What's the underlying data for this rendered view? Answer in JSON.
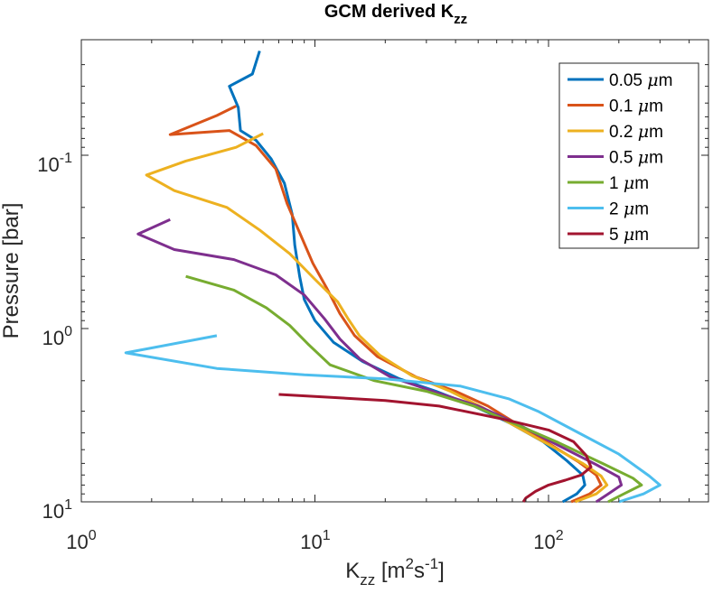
{
  "chart_data": {
    "type": "line",
    "title": "GCM derived K",
    "title_subscript": "zz",
    "xlabel": "K",
    "xlabel_subscript": "zz",
    "xlabel_units_open": " [m",
    "xlabel_units_sup1": "2",
    "xlabel_units_mid": "s",
    "xlabel_units_sup2": "-1",
    "xlabel_units_close": "]",
    "ylabel": "Pressure [bar]",
    "xscale": "log",
    "yscale": "log",
    "y_reversed": true,
    "xlim": [
      1,
      450
    ],
    "ylim": [
      0.0225,
      10
    ],
    "grid": false,
    "legend_location": "top-right",
    "x_ticks": [
      {
        "value": 1,
        "base": "10",
        "exp": "0"
      },
      {
        "value": 10,
        "base": "10",
        "exp": "1"
      },
      {
        "value": 100,
        "base": "10",
        "exp": "2"
      }
    ],
    "y_ticks": [
      {
        "value": 0.1,
        "base": "10",
        "exp": "-1"
      },
      {
        "value": 1,
        "base": "10",
        "exp": "0"
      },
      {
        "value": 10,
        "base": "10",
        "exp": "1"
      }
    ],
    "series": [
      {
        "name": "0.05 μm",
        "legend_value": "0.05",
        "legend_unit": "μm",
        "color": "#0072BD",
        "points": [
          [
            5.8,
            0.025
          ],
          [
            5.4,
            0.034
          ],
          [
            4.3,
            0.04
          ],
          [
            4.7,
            0.053
          ],
          [
            4.8,
            0.072
          ],
          [
            5.6,
            0.082
          ],
          [
            6.5,
            0.105
          ],
          [
            7.4,
            0.145
          ],
          [
            8.0,
            0.22
          ],
          [
            8.2,
            0.33
          ],
          [
            8.6,
            0.5
          ],
          [
            9.0,
            0.68
          ],
          [
            10.0,
            0.9
          ],
          [
            12.0,
            1.2
          ],
          [
            16.0,
            1.55
          ],
          [
            23.0,
            1.95
          ],
          [
            33.0,
            2.3
          ],
          [
            48.0,
            2.8
          ],
          [
            68.0,
            3.5
          ],
          [
            95.0,
            4.5
          ],
          [
            120.0,
            5.8
          ],
          [
            140.0,
            7.0
          ],
          [
            143.0,
            8.0
          ],
          [
            132.0,
            9.0
          ],
          [
            115.0,
            10.0
          ]
        ]
      },
      {
        "name": "0.1 μm",
        "legend_value": "0.1",
        "legend_unit": "μm",
        "color": "#D95319",
        "points": [
          [
            4.6,
            0.052
          ],
          [
            3.8,
            0.059
          ],
          [
            2.4,
            0.076
          ],
          [
            4.3,
            0.072
          ],
          [
            5.6,
            0.088
          ],
          [
            6.8,
            0.12
          ],
          [
            7.6,
            0.19
          ],
          [
            8.6,
            0.28
          ],
          [
            9.8,
            0.42
          ],
          [
            11.2,
            0.58
          ],
          [
            12.8,
            0.82
          ],
          [
            14.8,
            1.1
          ],
          [
            18.5,
            1.45
          ],
          [
            27.0,
            1.9
          ],
          [
            40.0,
            2.3
          ],
          [
            55.0,
            2.8
          ],
          [
            72.0,
            3.5
          ],
          [
            100.0,
            4.6
          ],
          [
            135.0,
            5.9
          ],
          [
            160.0,
            7.0
          ],
          [
            168.0,
            8.0
          ],
          [
            150.0,
            9.0
          ],
          [
            125.0,
            10.0
          ]
        ]
      },
      {
        "name": "0.2 μm",
        "legend_value": "0.2",
        "legend_unit": "μm",
        "color": "#EDB120",
        "points": [
          [
            6.0,
            0.075
          ],
          [
            4.6,
            0.09
          ],
          [
            2.8,
            0.108
          ],
          [
            1.9,
            0.13
          ],
          [
            2.5,
            0.16
          ],
          [
            4.2,
            0.2
          ],
          [
            5.8,
            0.27
          ],
          [
            7.8,
            0.37
          ],
          [
            10.0,
            0.52
          ],
          [
            12.5,
            0.7
          ],
          [
            13.8,
            0.87
          ],
          [
            15.5,
            1.1
          ],
          [
            19.0,
            1.43
          ],
          [
            26.0,
            1.87
          ],
          [
            38.0,
            2.3
          ],
          [
            52.0,
            2.85
          ],
          [
            68.0,
            3.5
          ],
          [
            98.0,
            4.6
          ],
          [
            140.0,
            6.0
          ],
          [
            168.0,
            7.1
          ],
          [
            178.0,
            8.0
          ],
          [
            160.0,
            9.0
          ],
          [
            130.0,
            10.0
          ]
        ]
      },
      {
        "name": "0.5 μm",
        "legend_value": "0.5",
        "legend_unit": "μm",
        "color": "#7E2F8E",
        "points": [
          [
            2.4,
            0.235
          ],
          [
            1.75,
            0.285
          ],
          [
            2.5,
            0.35
          ],
          [
            4.5,
            0.4
          ],
          [
            6.8,
            0.49
          ],
          [
            9.0,
            0.64
          ],
          [
            11.0,
            0.88
          ],
          [
            12.8,
            1.15
          ],
          [
            15.6,
            1.5
          ],
          [
            21.0,
            1.9
          ],
          [
            32.0,
            2.3
          ],
          [
            50.0,
            2.8
          ],
          [
            72.0,
            3.5
          ],
          [
            106.0,
            4.6
          ],
          [
            160.0,
            6.1
          ],
          [
            200.0,
            7.2
          ],
          [
            205.0,
            8.0
          ],
          [
            180.0,
            9.0
          ],
          [
            160.0,
            10.0
          ]
        ]
      },
      {
        "name": "1 μm",
        "legend_value": "1",
        "legend_unit": "μm",
        "color": "#77AC30",
        "points": [
          [
            2.8,
            0.5
          ],
          [
            4.5,
            0.6
          ],
          [
            6.2,
            0.76
          ],
          [
            7.8,
            0.96
          ],
          [
            9.4,
            1.24
          ],
          [
            11.6,
            1.62
          ],
          [
            18.0,
            2.0
          ],
          [
            30.0,
            2.3
          ],
          [
            48.0,
            2.8
          ],
          [
            70.0,
            3.5
          ],
          [
            110.0,
            4.55
          ],
          [
            170.0,
            6.0
          ],
          [
            230.0,
            7.3
          ],
          [
            250.0,
            8.0
          ],
          [
            210.0,
            9.0
          ],
          [
            180.0,
            10.0
          ]
        ]
      },
      {
        "name": "2 μm",
        "legend_value": "2",
        "legend_unit": "μm",
        "color": "#4DBEEE",
        "points": [
          [
            3.8,
            1.1
          ],
          [
            1.55,
            1.38
          ],
          [
            3.8,
            1.7
          ],
          [
            9.0,
            1.85
          ],
          [
            20.0,
            1.95
          ],
          [
            42.0,
            2.15
          ],
          [
            68.0,
            2.55
          ],
          [
            90.0,
            3.0
          ],
          [
            130.0,
            3.9
          ],
          [
            200.0,
            5.3
          ],
          [
            270.0,
            7.1
          ],
          [
            300.0,
            8.0
          ],
          [
            255.0,
            9.0
          ],
          [
            200.0,
            10.0
          ]
        ]
      },
      {
        "name": "5 μm",
        "legend_value": "5",
        "legend_unit": "μm",
        "color": "#A2142F",
        "points": [
          [
            7.0,
            2.4
          ],
          [
            20.0,
            2.6
          ],
          [
            34.0,
            2.8
          ],
          [
            62.0,
            3.3
          ],
          [
            100.0,
            3.85
          ],
          [
            128.0,
            4.5
          ],
          [
            145.0,
            5.4
          ],
          [
            152.0,
            6.3
          ],
          [
            138.0,
            7.0
          ],
          [
            118.0,
            7.5
          ],
          [
            100.0,
            8.0
          ],
          [
            88.0,
            8.7
          ],
          [
            80.0,
            9.5
          ],
          [
            78.0,
            10.0
          ]
        ]
      }
    ]
  }
}
